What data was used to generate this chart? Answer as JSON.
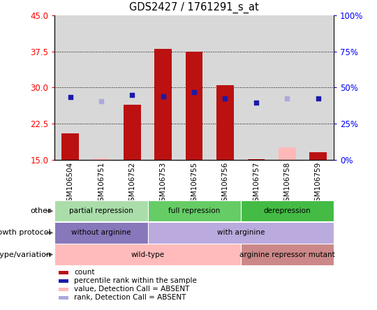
{
  "title": "GDS2427 / 1761291_s_at",
  "samples": [
    "GSM106504",
    "GSM106751",
    "GSM106752",
    "GSM106753",
    "GSM106755",
    "GSM106756",
    "GSM106757",
    "GSM106758",
    "GSM106759"
  ],
  "bar_values": [
    20.5,
    null,
    26.5,
    38.0,
    37.5,
    30.5,
    15.05,
    null,
    16.5
  ],
  "bar_absent": [
    null,
    15.3,
    null,
    null,
    null,
    null,
    null,
    17.5,
    null
  ],
  "percentile_values": [
    28.0,
    null,
    28.5,
    28.2,
    29.0,
    27.8,
    26.8,
    null,
    27.8
  ],
  "percentile_absent": [
    null,
    27.2,
    null,
    null,
    null,
    null,
    null,
    27.8,
    null
  ],
  "ylim": [
    15,
    45
  ],
  "yticks_left": [
    15,
    22.5,
    30,
    37.5,
    45
  ],
  "yticks_right": [
    0,
    25,
    50,
    75,
    100
  ],
  "bar_color": "#bb1111",
  "bar_absent_color": "#ffb8b8",
  "dot_color": "#1a1aaa",
  "dot_absent_color": "#aaaadd",
  "annotation_rows": [
    {
      "label": "other",
      "segments": [
        {
          "start": 0,
          "end": 3,
          "text": "partial repression",
          "color": "#aaddaa"
        },
        {
          "start": 3,
          "end": 6,
          "text": "full repression",
          "color": "#66cc66"
        },
        {
          "start": 6,
          "end": 9,
          "text": "derepression",
          "color": "#44bb44"
        }
      ]
    },
    {
      "label": "growth protocol",
      "segments": [
        {
          "start": 0,
          "end": 3,
          "text": "without arginine",
          "color": "#8877bb"
        },
        {
          "start": 3,
          "end": 9,
          "text": "with arginine",
          "color": "#bbaadd"
        }
      ]
    },
    {
      "label": "genotype/variation",
      "segments": [
        {
          "start": 0,
          "end": 6,
          "text": "wild-type",
          "color": "#ffbbbb"
        },
        {
          "start": 6,
          "end": 9,
          "text": "arginine repressor mutant",
          "color": "#cc8888"
        }
      ]
    }
  ],
  "legend_items": [
    {
      "color": "#bb1111",
      "label": "count",
      "marker": "s"
    },
    {
      "color": "#1a1aaa",
      "label": "percentile rank within the sample",
      "marker": "s"
    },
    {
      "color": "#ffb8b8",
      "label": "value, Detection Call = ABSENT",
      "marker": "s"
    },
    {
      "color": "#aaaadd",
      "label": "rank, Detection Call = ABSENT",
      "marker": "s"
    }
  ]
}
